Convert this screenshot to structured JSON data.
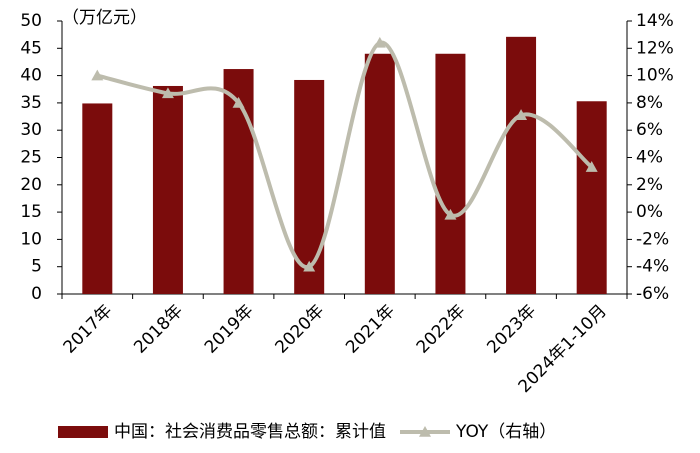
{
  "chart_data": {
    "type": "bar",
    "y_label": "（万亿元）",
    "categories": [
      "2017年",
      "2018年",
      "2019年",
      "2020年",
      "2021年",
      "2022年",
      "2023年",
      "2024年1-10月"
    ],
    "series": [
      {
        "name": "中国：社会消费品零售总额：累计值",
        "color": "#7b0c0c",
        "type": "bar",
        "values": [
          34.9,
          38.1,
          41.2,
          39.2,
          44.0,
          44.0,
          47.1,
          35.3
        ]
      },
      {
        "name": "YOY（右轴）",
        "color": "#bdbcad",
        "type": "line",
        "axis": "y2",
        "values": [
          10.0,
          8.7,
          8.0,
          -4.0,
          12.4,
          -0.2,
          7.1,
          3.3
        ]
      }
    ],
    "ylim": [
      0,
      50
    ],
    "yticks": [
      0,
      5,
      10,
      15,
      20,
      25,
      30,
      35,
      40,
      45,
      50
    ],
    "y2lim": [
      -6,
      14
    ],
    "y2ticks": [
      {
        "value": -6,
        "label": "-6%"
      },
      {
        "value": -4,
        "label": "-4%"
      },
      {
        "value": -2,
        "label": "-2%"
      },
      {
        "value": 0,
        "label": "0%"
      },
      {
        "value": 2,
        "label": "2%"
      },
      {
        "value": 4,
        "label": "4%"
      },
      {
        "value": 6,
        "label": "6%"
      },
      {
        "value": 8,
        "label": "8%"
      },
      {
        "value": 10,
        "label": "10%"
      },
      {
        "value": 12,
        "label": "12%"
      },
      {
        "value": 14,
        "label": "14%"
      }
    ],
    "legend": "bottom"
  }
}
